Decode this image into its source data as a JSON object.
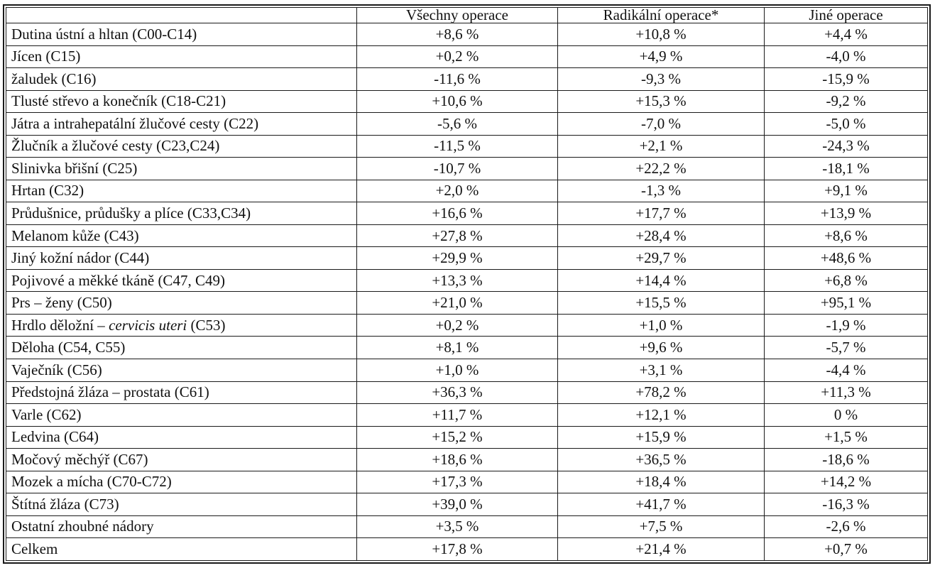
{
  "columns": [
    "",
    "Všechny operace",
    "Radikální operace*",
    "Jiné operace"
  ],
  "rows": [
    {
      "label": "Dutina ústní a hltan (C00-C14)",
      "v1": "+8,6 %",
      "v2": "+10,8 %",
      "v3": "+4,4 %"
    },
    {
      "label": "Jícen (C15)",
      "v1": "+0,2 %",
      "v2": "+4,9 %",
      "v3": "-4,0 %"
    },
    {
      "label": "žaludek (C16)",
      "v1": "-11,6 %",
      "v2": "-9,3 %",
      "v3": "-15,9 %"
    },
    {
      "label": "Tlusté střevo a konečník (C18-C21)",
      "v1": "+10,6 %",
      "v2": "+15,3 %",
      "v3": "-9,2 %"
    },
    {
      "label": "Játra a intrahepatální žlučové cesty (C22)",
      "v1": "-5,6 %",
      "v2": "-7,0 %",
      "v3": "-5,0 %"
    },
    {
      "label": "Žlučník a žlučové cesty (C23,C24)",
      "v1": "-11,5 %",
      "v2": "+2,1 %",
      "v3": "-24,3 %"
    },
    {
      "label": "Slinivka břišní (C25)",
      "v1": "-10,7 %",
      "v2": "+22,2 %",
      "v3": "-18,1 %"
    },
    {
      "label": "Hrtan (C32)",
      "v1": "+2,0 %",
      "v2": "-1,3 %",
      "v3": "+9,1 %"
    },
    {
      "label": "Průdušnice, průdušky a plíce (C33,C34)",
      "v1": "+16,6 %",
      "v2": "+17,7 %",
      "v3": "+13,9 %"
    },
    {
      "label": "Melanom kůže (C43)",
      "v1": "+27,8 %",
      "v2": "+28,4 %",
      "v3": "+8,6 %"
    },
    {
      "label": "Jiný kožní nádor (C44)",
      "v1": "+29,9 %",
      "v2": "+29,7 %",
      "v3": "+48,6 %"
    },
    {
      "label": "Pojivové a měkké tkáně (C47, C49)",
      "v1": "+13,3 %",
      "v2": "+14,4 %",
      "v3": "+6,8 %"
    },
    {
      "label": "Prs – ženy (C50)",
      "v1": "+21,0 %",
      "v2": "+15,5 %",
      "v3": "+95,1 %"
    },
    {
      "label_pre": "Hrdlo děložní – ",
      "label_it": "cervicis uteri",
      "label_post": " (C53)",
      "v1": "+0,2 %",
      "v2": "+1,0 %",
      "v3": "-1,9 %"
    },
    {
      "label": "Děloha (C54, C55)",
      "v1": "+8,1 %",
      "v2": "+9,6 %",
      "v3": "-5,7 %"
    },
    {
      "label": "Vaječník (C56)",
      "v1": "+1,0 %",
      "v2": "+3,1 %",
      "v3": "-4,4 %"
    },
    {
      "label": "Předstojná žláza – prostata (C61)",
      "v1": "+36,3 %",
      "v2": "+78,2 %",
      "v3": "+11,3 %"
    },
    {
      "label": "Varle (C62)",
      "v1": "+11,7 %",
      "v2": "+12,1 %",
      "v3": "0 %"
    },
    {
      "label": "Ledvina (C64)",
      "v1": "+15,2 %",
      "v2": "+15,9 %",
      "v3": "+1,5 %"
    },
    {
      "label": "Močový měchýř (C67)",
      "v1": "+18,6 %",
      "v2": "+36,5 %",
      "v3": "-18,6 %"
    },
    {
      "label": "Mozek a mícha (C70-C72)",
      "v1": "+17,3 %",
      "v2": "+18,4 %",
      "v3": "+14,2 %"
    },
    {
      "label": "Štítná žláza (C73)",
      "v1": "+39,0 %",
      "v2": "+41,7 %",
      "v3": "-16,3 %"
    },
    {
      "label": "Ostatní zhoubné nádory",
      "v1": "+3,5 %",
      "v2": "+7,5 %",
      "v3": "-2,6 %"
    },
    {
      "label": "Celkem",
      "v1": "+17,8 %",
      "v2": "+21,4 %",
      "v3": "+0,7 %"
    }
  ]
}
